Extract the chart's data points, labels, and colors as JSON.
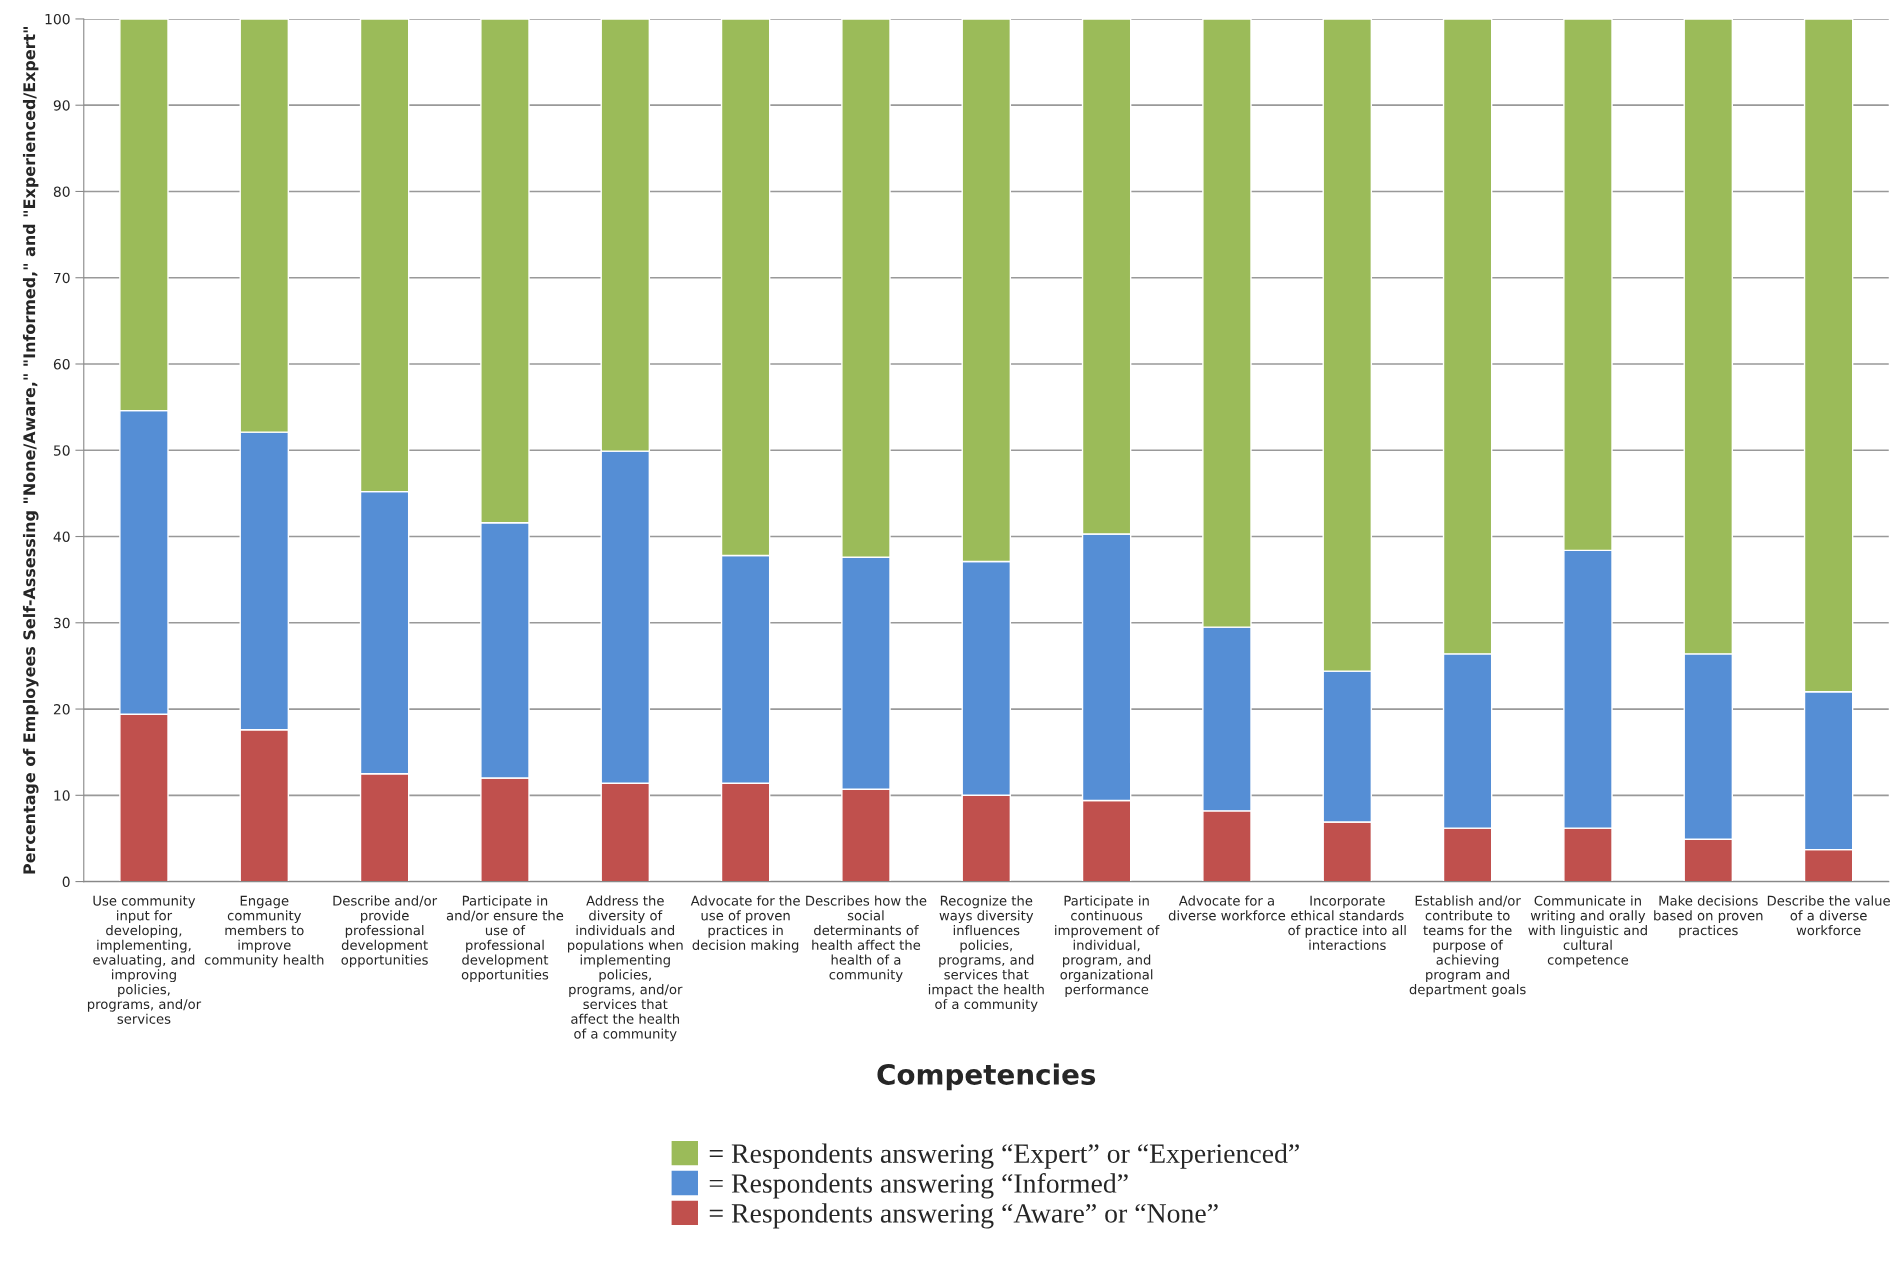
{
  "chart_data": {
    "type": "bar",
    "stacked": true,
    "xlabel": "Competencies",
    "ylabel": "Percentage of Employees Self-Assessing \"None/Aware,\" \"Informed,\" and \"Experienced/Expert\"",
    "categories": [
      "Use community\ninput for\ndeveloping,\nimplementing,\nevaluating, and\nimproving\npolicies,\nprograms, and/or\nservices",
      "Engage\ncommunity\nmembers to\nimprove\ncommunity health",
      "Describe and/or\nprovide\nprofessional\ndevelopment\nopportunities",
      "Participate in\nand/or ensure the\nuse of\nprofessional\ndevelopment\nopportunities",
      "Address the\ndiversity of\nindividuals and\npopulations when\nimplementing\npolicies,\nprograms, and/or\nservices that\naffect the health\nof a community",
      "Advocate for the\nuse of proven\npractices in\ndecision making",
      "Describes how the\nsocial\ndeterminants of\nhealth affect the\nhealth of a\ncommunity",
      "Recognize the\nways diversity\ninfluences\npolicies,\nprograms, and\nservices that\nimpact the health\nof a community",
      "Participate in\ncontinuous\nimprovement of\nindividual,\nprogram, and\norganizational\nperformance",
      "Advocate for a\ndiverse workforce",
      "Incorporate\nethical standards\nof practice into all\ninteractions",
      "Establish and/or\ncontribute to\nteams for the\npurpose of\nachieving\nprogram and\ndepartment goals",
      "Communicate in\nwriting and orally\nwith linguistic and\ncultural\ncompetence",
      "Make decisions\nbased on proven\npractices",
      "Describe the value\nof a diverse\nworkforce"
    ],
    "series": [
      {
        "name": "= Respondents answering “Aware” or “None”",
        "color": "#c0504d",
        "values": [
          19.4,
          17.6,
          12.5,
          12.0,
          11.4,
          11.4,
          10.7,
          10.0,
          9.4,
          8.2,
          6.9,
          6.2,
          6.2,
          4.9,
          3.7
        ]
      },
      {
        "name": "= Respondents answering “Informed”",
        "color": "#558ed5",
        "values": [
          35.2,
          34.5,
          32.7,
          29.6,
          38.5,
          26.4,
          26.9,
          27.1,
          30.9,
          21.3,
          17.5,
          20.2,
          32.2,
          21.5,
          18.3
        ]
      },
      {
        "name": "= Respondents answering “Expert” or “Experienced”",
        "color": "#9bbb59",
        "values": [
          45.4,
          47.9,
          54.8,
          58.4,
          50.1,
          62.2,
          62.4,
          62.9,
          59.7,
          70.5,
          75.6,
          73.6,
          61.6,
          73.6,
          78.0
        ]
      }
    ],
    "ylim": [
      0,
      100
    ],
    "yticks": [
      0,
      10,
      20,
      30,
      40,
      50,
      60,
      70,
      80,
      90,
      100
    ],
    "grid": "y",
    "legend": "bottom"
  }
}
